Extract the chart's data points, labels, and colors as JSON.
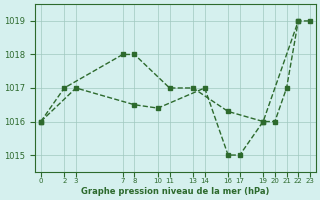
{
  "xlabel": "Graphe pression niveau de la mer (hPa)",
  "bg_color": "#d5f0ee",
  "line_color": "#2d6a2d",
  "grid_color": "#a0c8c0",
  "ylim": [
    1014.5,
    1019.5
  ],
  "xlim": [
    -0.5,
    23.5
  ],
  "yticks": [
    1015,
    1016,
    1017,
    1018,
    1019
  ],
  "xtick_pos": [
    0,
    2,
    3,
    7,
    8,
    10,
    11,
    13,
    14,
    16,
    17,
    19,
    20,
    21,
    22,
    23
  ],
  "xtick_labels": [
    "0",
    "2",
    "3",
    "7",
    "8",
    "10",
    "11",
    "13",
    "14",
    "16",
    "17",
    "19",
    "20",
    "21",
    "22",
    "23"
  ],
  "line1_x": [
    0,
    2,
    7,
    8,
    11,
    13,
    16,
    19,
    22,
    23
  ],
  "line1_y": [
    1016.0,
    1017.0,
    1018.0,
    1018.0,
    1017.0,
    1017.0,
    1016.3,
    1016.0,
    1019.0,
    1019.0
  ],
  "line2_x": [
    0,
    3,
    8,
    10,
    14,
    16,
    17,
    19,
    20,
    21,
    22
  ],
  "line2_y": [
    1016.0,
    1017.0,
    1016.5,
    1016.4,
    1017.0,
    1015.0,
    1015.0,
    1016.0,
    1016.0,
    1017.0,
    1019.0
  ]
}
